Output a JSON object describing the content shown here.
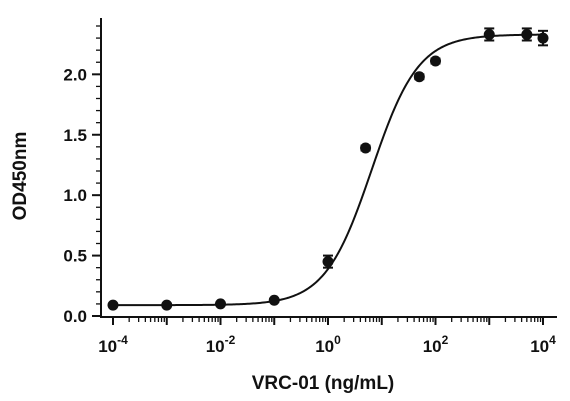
{
  "chart_data": {
    "type": "scatter",
    "xlabel": "VRC-01 (ng/mL)",
    "ylabel": "OD450nm",
    "x_scale": "log",
    "xlim": [
      0.0001,
      10000
    ],
    "ylim": [
      0,
      2.4
    ],
    "x_ticks": [
      {
        "base": "10",
        "exp": "-4",
        "value": 0.0001
      },
      {
        "base": "10",
        "exp": "-2",
        "value": 0.01
      },
      {
        "base": "10",
        "exp": "0",
        "value": 1
      },
      {
        "base": "10",
        "exp": "2",
        "value": 100
      },
      {
        "base": "10",
        "exp": "4",
        "value": 10000
      }
    ],
    "y_ticks": [
      "0.0",
      "0.5",
      "1.0",
      "1.5",
      "2.0"
    ],
    "y_tick_values": [
      0,
      0.5,
      1.0,
      1.5,
      2.0
    ],
    "grid": false,
    "legend": "none",
    "series": [
      {
        "x": [
          0.0001,
          0.001,
          0.01,
          0.1,
          1,
          5,
          50,
          100,
          1000,
          5000,
          10000
        ],
        "y": [
          0.09,
          0.09,
          0.1,
          0.13,
          0.45,
          1.39,
          1.98,
          2.11,
          2.33,
          2.33,
          2.3
        ],
        "error": [
          0.01,
          0.01,
          0.01,
          0.01,
          0.05,
          0.02,
          0.02,
          0.02,
          0.05,
          0.05,
          0.06
        ]
      }
    ],
    "fit": {
      "model": "4PL",
      "bottom": 0.09,
      "top": 2.33,
      "ec50": 6.5,
      "hill": 1.0
    },
    "colors": {
      "marker": "#111111",
      "line": "#111111",
      "axis": "#111111"
    }
  }
}
